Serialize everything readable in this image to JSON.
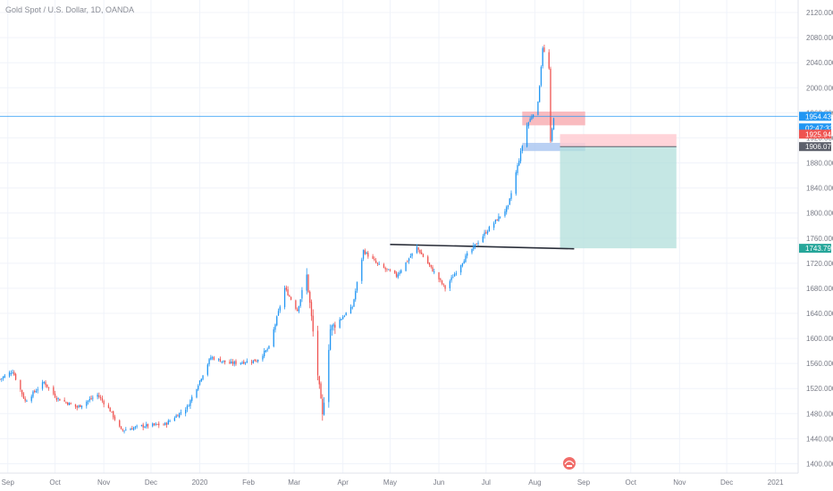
{
  "chart_title": "Gold Spot / U.S. Dollar, 1D, OANDA",
  "watermark": "TradingView logo",
  "colors": {
    "up": "#2196f3",
    "down": "#ef5350",
    "current_price": "#2196f3",
    "countdown": "#2196f3",
    "red_tag": "#ef5350",
    "grey_tag": "#5d606b",
    "teal_tag": "#26a69a",
    "target_zone": "#b2dfdb",
    "stop_zone": "#ffcdd2",
    "supply_zone": "#f8b4b8",
    "demand_zone": "#a8c4f0",
    "support_line": "#2a2e39",
    "grid": "#f0f3fa"
  },
  "chart_data": {
    "type": "candlestick",
    "title": "Gold Spot / U.S. Dollar, 1D, OANDA",
    "ylim": [
      1385,
      2140
    ],
    "y_ticks": [
      "1400.000",
      "1440.000",
      "1480.000",
      "1520.000",
      "1560.000",
      "1600.000",
      "1640.000",
      "1680.000",
      "1720.000",
      "1760.000",
      "1800.000",
      "1840.000",
      "1880.000",
      "1920.000",
      "1960.000",
      "2000.000",
      "2040.000",
      "2080.000",
      "2120.000"
    ],
    "x_ticks": [
      "Sep",
      "Oct",
      "Nov",
      "Dec",
      "2020",
      "Feb",
      "Mar",
      "Apr",
      "May",
      "Jun",
      "Jul",
      "Aug",
      "Sep",
      "Oct",
      "Nov",
      "Dec",
      "2021"
    ],
    "anchors": [
      {
        "date": "2019-08-27",
        "close": 1535
      },
      {
        "date": "2019-09-04",
        "close": 1548
      },
      {
        "date": "2019-09-12",
        "close": 1500
      },
      {
        "date": "2019-09-24",
        "close": 1530
      },
      {
        "date": "2019-10-02",
        "close": 1505
      },
      {
        "date": "2019-10-15",
        "close": 1490
      },
      {
        "date": "2019-10-28",
        "close": 1510
      },
      {
        "date": "2019-11-05",
        "close": 1485
      },
      {
        "date": "2019-11-12",
        "close": 1453
      },
      {
        "date": "2019-11-25",
        "close": 1460
      },
      {
        "date": "2019-12-10",
        "close": 1463
      },
      {
        "date": "2019-12-24",
        "close": 1490
      },
      {
        "date": "2020-01-08",
        "close": 1570
      },
      {
        "date": "2020-01-20",
        "close": 1560
      },
      {
        "date": "2020-02-06",
        "close": 1565
      },
      {
        "date": "2020-02-14",
        "close": 1585
      },
      {
        "date": "2020-02-24",
        "close": 1680
      },
      {
        "date": "2020-03-03",
        "close": 1645
      },
      {
        "date": "2020-03-09",
        "close": 1700
      },
      {
        "date": "2020-03-19",
        "close": 1475
      },
      {
        "date": "2020-03-24",
        "close": 1615
      },
      {
        "date": "2020-04-07",
        "close": 1650
      },
      {
        "date": "2020-04-14",
        "close": 1740
      },
      {
        "date": "2020-04-23",
        "close": 1718
      },
      {
        "date": "2020-05-05",
        "close": 1700
      },
      {
        "date": "2020-05-18",
        "close": 1745
      },
      {
        "date": "2020-06-05",
        "close": 1680
      },
      {
        "date": "2020-06-18",
        "close": 1730
      },
      {
        "date": "2020-07-01",
        "close": 1770
      },
      {
        "date": "2020-07-15",
        "close": 1810
      },
      {
        "date": "2020-07-27",
        "close": 1940
      },
      {
        "date": "2020-08-03",
        "close": 1975
      },
      {
        "date": "2020-08-06",
        "close": 2065
      },
      {
        "date": "2020-08-10",
        "close": 2030
      },
      {
        "date": "2020-08-11",
        "close": 1912
      },
      {
        "date": "2020-08-13",
        "close": 1954
      }
    ],
    "current_price": "1954.438",
    "countdown": "02:47:33",
    "price_tags": [
      "1925.944",
      "1906.079",
      "1743.790"
    ],
    "levels": {
      "current": 1954.438,
      "stop": 1925.944,
      "entry": 1906.079,
      "target": 1743.79,
      "support": 1746
    },
    "zones": {
      "supply": {
        "from": "2020-07-24",
        "to": "2020-09-02",
        "low": 1940,
        "high": 1962
      },
      "demand": {
        "from": "2020-07-24",
        "to": "2020-09-02",
        "low": 1899,
        "high": 1912
      },
      "position": {
        "from": "2020-08-17",
        "to": "2020-10-30",
        "entry": 1906.079,
        "stop": 1925.944,
        "target": 1743.79
      },
      "support_line": {
        "from": "2020-05-01",
        "to": "2020-08-26",
        "start": 1750,
        "end": 1743
      }
    }
  }
}
